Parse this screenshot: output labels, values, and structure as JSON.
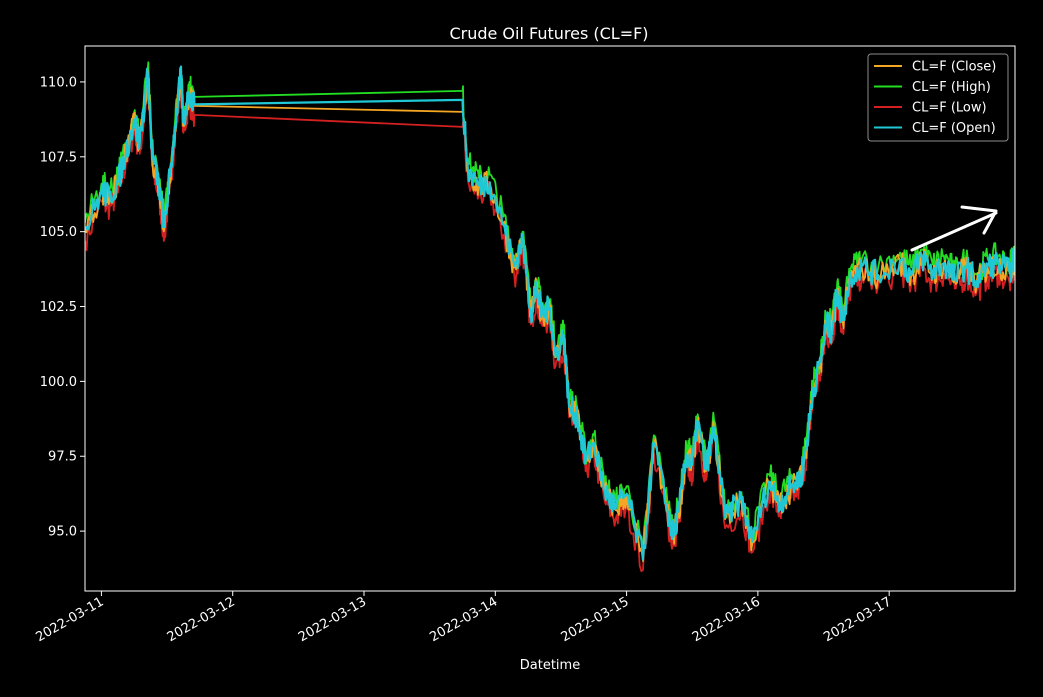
{
  "chart_data": {
    "type": "line",
    "title": "Crude Oil Futures (CL=F)",
    "xlabel": "Datetime",
    "ylabel": "",
    "x_range": [
      "2022-03-10T21:00",
      "2022-03-17T23:00"
    ],
    "ylim": [
      93.0,
      111.2
    ],
    "x_ticks": [
      "2022-03-11",
      "2022-03-12",
      "2022-03-13",
      "2022-03-14",
      "2022-03-15",
      "2022-03-16",
      "2022-03-17"
    ],
    "y_ticks": [
      "95.0",
      "97.5",
      "100.0",
      "102.5",
      "105.0",
      "107.5",
      "110.0"
    ],
    "legend_position": "top-right",
    "grid": false,
    "series": [
      {
        "name": "CL=F (Close)",
        "color": "#f5a623"
      },
      {
        "name": "CL=F (High)",
        "color": "#22dd22"
      },
      {
        "name": "CL=F (Low)",
        "color": "#d42020"
      },
      {
        "name": "CL=F (Open)",
        "color": "#20c8d6"
      }
    ],
    "x": [
      "2022-03-10T21:00",
      "2022-03-11T00:00",
      "2022-03-11T01:30",
      "2022-03-11T03:00",
      "2022-03-11T04:30",
      "2022-03-11T06:00",
      "2022-03-11T07:00",
      "2022-03-11T08:30",
      "2022-03-11T09:15",
      "2022-03-11T10:30",
      "2022-03-11T11:30",
      "2022-03-11T12:30",
      "2022-03-11T13:30",
      "2022-03-11T14:30",
      "2022-03-11T15:00",
      "2022-03-11T16:00",
      "2022-03-11T17:00",
      "2022-03-13T18:00",
      "2022-03-13T19:00",
      "2022-03-13T21:00",
      "2022-03-13T23:00",
      "2022-03-14T01:30",
      "2022-03-14T03:30",
      "2022-03-14T05:00",
      "2022-03-14T06:30",
      "2022-03-14T07:30",
      "2022-03-14T08:30",
      "2022-03-14T10:00",
      "2022-03-14T11:00",
      "2022-03-14T12:30",
      "2022-03-14T13:30",
      "2022-03-14T15:00",
      "2022-03-14T16:30",
      "2022-03-14T18:00",
      "2022-03-14T20:00",
      "2022-03-14T22:00",
      "2022-03-15T00:00",
      "2022-03-15T03:00",
      "2022-03-15T05:00",
      "2022-03-15T07:30",
      "2022-03-15T08:30",
      "2022-03-15T09:30",
      "2022-03-15T11:00",
      "2022-03-15T12:00",
      "2022-03-15T13:00",
      "2022-03-15T14:30",
      "2022-03-15T16:00",
      "2022-03-15T18:00",
      "2022-03-15T21:00",
      "2022-03-15T23:00",
      "2022-03-16T02:00",
      "2022-03-16T04:00",
      "2022-03-16T06:00",
      "2022-03-16T08:00",
      "2022-03-16T09:00",
      "2022-03-16T10:00",
      "2022-03-16T11:30",
      "2022-03-16T12:30",
      "2022-03-16T13:30",
      "2022-03-16T14:30",
      "2022-03-16T15:30",
      "2022-03-16T17:00",
      "2022-03-16T19:00",
      "2022-03-16T22:00",
      "2022-03-17T02:00",
      "2022-03-17T04:00",
      "2022-03-17T06:00",
      "2022-03-17T08:00",
      "2022-03-17T10:00",
      "2022-03-17T12:00",
      "2022-03-17T14:00",
      "2022-03-17T16:00",
      "2022-03-17T18:00",
      "2022-03-17T20:00",
      "2022-03-17T22:00",
      "2022-03-17T23:00"
    ],
    "values": [
      105.0,
      106.3,
      106.1,
      106.6,
      107.6,
      108.7,
      107.9,
      110.2,
      107.5,
      106.5,
      105.1,
      106.8,
      108.5,
      110.2,
      108.6,
      109.6,
      109.2,
      109.0,
      107.0,
      106.5,
      106.6,
      105.2,
      103.8,
      104.7,
      102.2,
      103.1,
      102.2,
      102.4,
      100.8,
      101.5,
      99.1,
      98.8,
      97.3,
      97.9,
      96.3,
      95.7,
      96.2,
      94.0,
      97.9,
      95.6,
      94.8,
      95.6,
      97.5,
      97.2,
      98.6,
      97.0,
      98.4,
      95.4,
      96.0,
      94.6,
      96.6,
      95.9,
      96.4,
      96.8,
      98.0,
      99.6,
      100.6,
      101.9,
      101.6,
      103.0,
      102.0,
      103.5,
      103.8,
      103.5,
      104.0,
      103.5,
      104.1,
      103.6,
      103.9,
      103.4,
      103.8,
      103.3,
      103.8,
      103.9,
      103.6,
      104.1
    ]
  },
  "annotation": {
    "type": "hand-drawn-arrow",
    "color": "#ffffff"
  }
}
